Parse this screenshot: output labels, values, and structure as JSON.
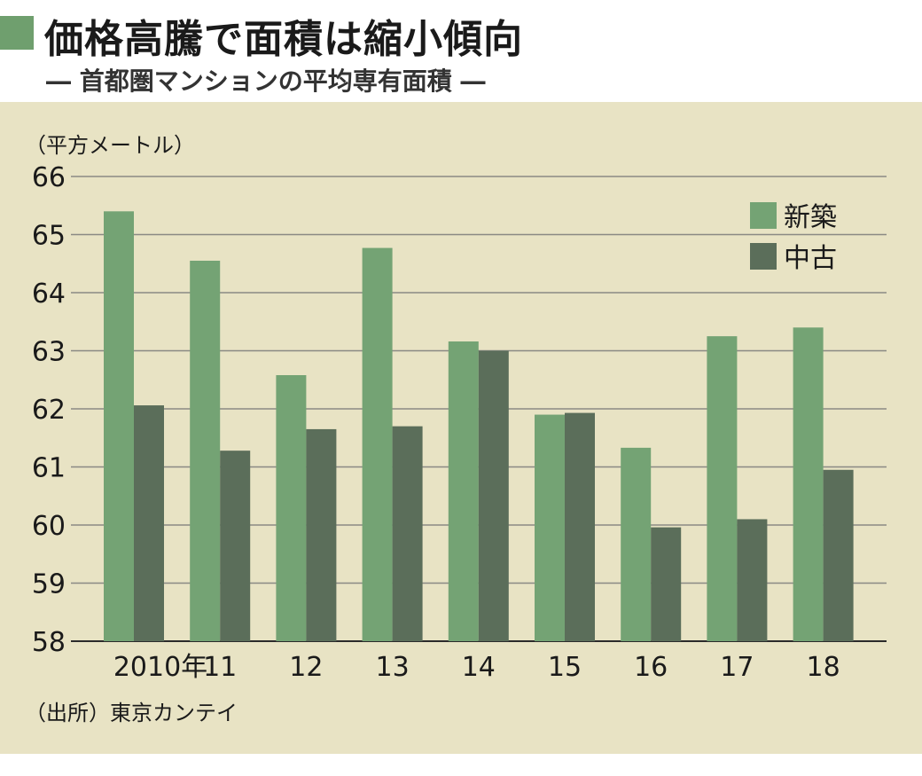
{
  "header": {
    "title": "価格高騰で面積は縮小傾向",
    "subtitle": "― 首都圏マンションの平均専有面積 ―"
  },
  "colors": {
    "new": "#74a374",
    "used": "#5b6e5a",
    "panel": "#e8e3c4",
    "accent": "#6f9f6e"
  },
  "chart_data": {
    "type": "bar",
    "unit_label": "（平方メートル）",
    "categories": [
      "2010年",
      "11",
      "12",
      "13",
      "14",
      "15",
      "16",
      "17",
      "18"
    ],
    "series": [
      {
        "name": "新築",
        "values": [
          65.4,
          64.55,
          62.58,
          64.77,
          63.16,
          61.9,
          61.33,
          63.25,
          63.4
        ]
      },
      {
        "name": "中古",
        "values": [
          62.06,
          61.28,
          61.65,
          61.7,
          63.0,
          61.93,
          59.96,
          60.1,
          60.95
        ]
      }
    ],
    "ylim": [
      58,
      66
    ],
    "yticks": [
      58,
      59,
      60,
      61,
      62,
      63,
      64,
      65,
      66
    ],
    "grid": true,
    "legend_position": "top-right",
    "source": "（出所）東京カンテイ"
  }
}
